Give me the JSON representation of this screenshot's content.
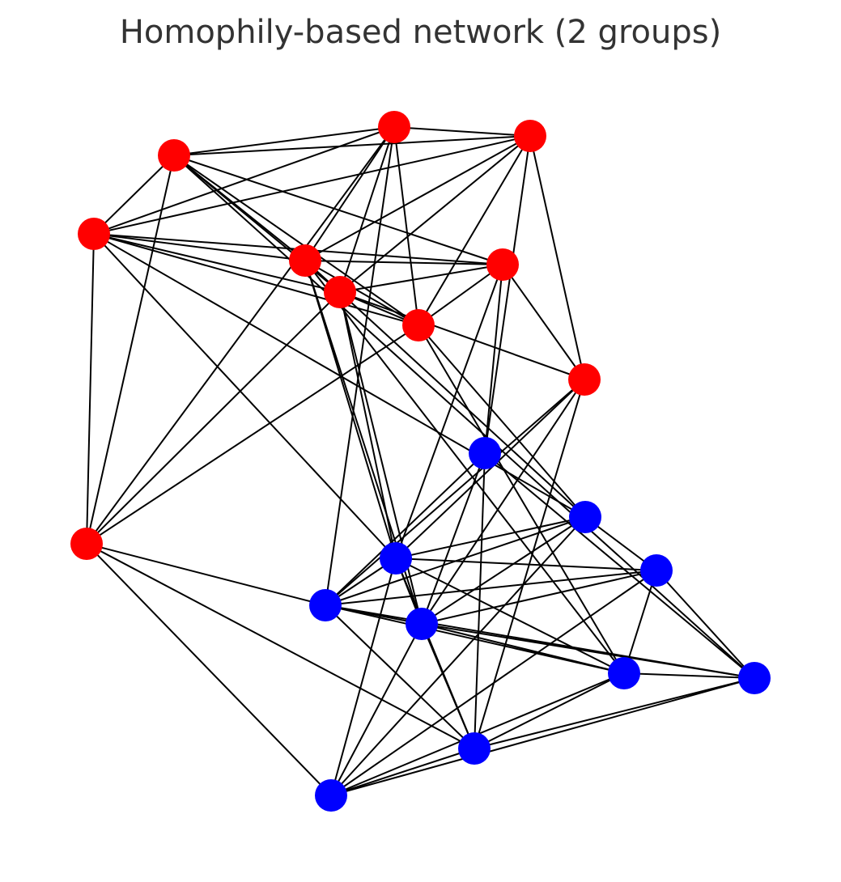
{
  "figure": {
    "title": "Homophily-based network (2 groups)"
  },
  "colors": {
    "group_a": "#ff0000",
    "group_b": "#0000ff",
    "edge": "#000000",
    "title": "#333333",
    "background": "#ffffff"
  },
  "graph": {
    "nodes": [
      {
        "id": "R1",
        "group": "a"
      },
      {
        "id": "R2",
        "group": "a"
      },
      {
        "id": "R3",
        "group": "a"
      },
      {
        "id": "R4",
        "group": "a"
      },
      {
        "id": "R5",
        "group": "a"
      },
      {
        "id": "R6",
        "group": "a"
      },
      {
        "id": "R7",
        "group": "a"
      },
      {
        "id": "R8",
        "group": "a"
      },
      {
        "id": "R9",
        "group": "a"
      },
      {
        "id": "R10",
        "group": "a"
      },
      {
        "id": "B1",
        "group": "b"
      },
      {
        "id": "B2",
        "group": "b"
      },
      {
        "id": "B3",
        "group": "b"
      },
      {
        "id": "B4",
        "group": "b"
      },
      {
        "id": "B5",
        "group": "b"
      },
      {
        "id": "B6",
        "group": "b"
      },
      {
        "id": "B7",
        "group": "b"
      },
      {
        "id": "B8",
        "group": "b"
      },
      {
        "id": "B9",
        "group": "b"
      },
      {
        "id": "B10",
        "group": "b"
      }
    ],
    "edges": [
      [
        "R1",
        "R2"
      ],
      [
        "R1",
        "R3"
      ],
      [
        "R1",
        "R4"
      ],
      [
        "R1",
        "R6"
      ],
      [
        "R1",
        "R7"
      ],
      [
        "R1",
        "R8"
      ],
      [
        "R1",
        "R10"
      ],
      [
        "R1",
        "B5"
      ],
      [
        "R2",
        "R3"
      ],
      [
        "R2",
        "R4"
      ],
      [
        "R2",
        "R6"
      ],
      [
        "R2",
        "R7"
      ],
      [
        "R2",
        "R8"
      ],
      [
        "R2",
        "R9"
      ],
      [
        "R2",
        "B1"
      ],
      [
        "R3",
        "R4"
      ],
      [
        "R3",
        "R5"
      ],
      [
        "R3",
        "R6"
      ],
      [
        "R3",
        "R7"
      ],
      [
        "R3",
        "R8"
      ],
      [
        "R3",
        "R10"
      ],
      [
        "R3",
        "B7"
      ],
      [
        "R4",
        "R5"
      ],
      [
        "R4",
        "R6"
      ],
      [
        "R4",
        "R7"
      ],
      [
        "R4",
        "R8"
      ],
      [
        "R4",
        "R10"
      ],
      [
        "R4",
        "B2"
      ],
      [
        "R4",
        "B3"
      ],
      [
        "R5",
        "R6"
      ],
      [
        "R5",
        "R7"
      ],
      [
        "R5",
        "R8"
      ],
      [
        "R5",
        "R9"
      ],
      [
        "R5",
        "B1"
      ],
      [
        "R5",
        "B3"
      ],
      [
        "R6",
        "R7"
      ],
      [
        "R6",
        "R8"
      ],
      [
        "R6",
        "B3"
      ],
      [
        "R6",
        "B6"
      ],
      [
        "R6",
        "B8"
      ],
      [
        "R7",
        "R8"
      ],
      [
        "R7",
        "R9"
      ],
      [
        "R7",
        "R10"
      ],
      [
        "R7",
        "B2"
      ],
      [
        "R7",
        "B3"
      ],
      [
        "R7",
        "B6"
      ],
      [
        "R8",
        "R10"
      ],
      [
        "R8",
        "B2"
      ],
      [
        "R8",
        "B8"
      ],
      [
        "R9",
        "B3"
      ],
      [
        "R9",
        "B6"
      ],
      [
        "R9",
        "B9"
      ],
      [
        "R9",
        "B5"
      ],
      [
        "R10",
        "B5"
      ],
      [
        "R10",
        "B10"
      ],
      [
        "R10",
        "B9"
      ],
      [
        "B1",
        "B5"
      ],
      [
        "B1",
        "B6"
      ],
      [
        "B1",
        "B9"
      ],
      [
        "B1",
        "B7"
      ],
      [
        "B2",
        "B5"
      ],
      [
        "B2",
        "B4"
      ],
      [
        "B2",
        "B6"
      ],
      [
        "B2",
        "B3"
      ],
      [
        "B2",
        "B10"
      ],
      [
        "B3",
        "B5"
      ],
      [
        "B3",
        "B4"
      ],
      [
        "B3",
        "B6"
      ],
      [
        "B3",
        "B8"
      ],
      [
        "B3",
        "B9"
      ],
      [
        "B3",
        "B10"
      ],
      [
        "B4",
        "B5"
      ],
      [
        "B4",
        "B6"
      ],
      [
        "B4",
        "B7"
      ],
      [
        "B4",
        "B8"
      ],
      [
        "B4",
        "B10"
      ],
      [
        "B5",
        "B6"
      ],
      [
        "B5",
        "B8"
      ],
      [
        "B5",
        "B9"
      ],
      [
        "B5",
        "B7"
      ],
      [
        "B6",
        "B7"
      ],
      [
        "B6",
        "B8"
      ],
      [
        "B6",
        "B9"
      ],
      [
        "B6",
        "B10"
      ],
      [
        "B7",
        "B8"
      ],
      [
        "B7",
        "B9"
      ],
      [
        "B7",
        "B10"
      ],
      [
        "B8",
        "B9"
      ],
      [
        "B8",
        "B10"
      ],
      [
        "B9",
        "B10"
      ]
    ]
  }
}
